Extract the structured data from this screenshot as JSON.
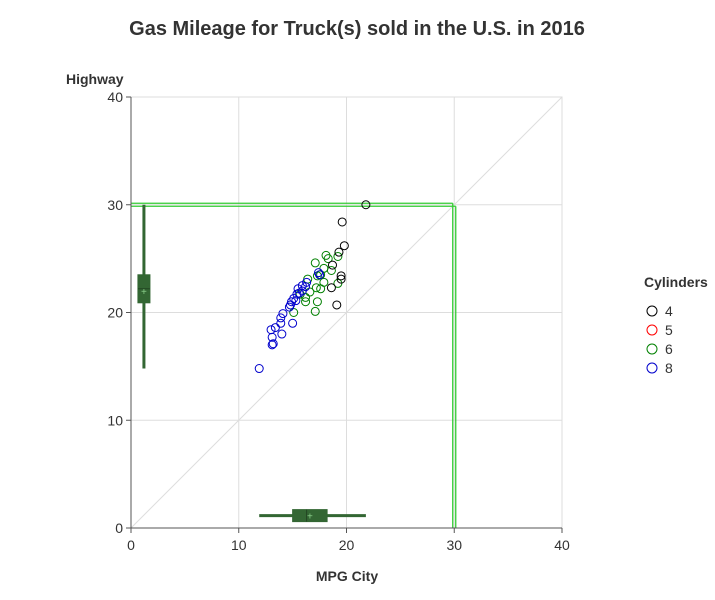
{
  "chart_data": {
    "type": "scatter",
    "title": "Gas Mileage for Truck(s) sold in the U.S. in 2016",
    "xlabel": "MPG City",
    "ylabel": "Highway",
    "xlim": [
      0,
      40
    ],
    "ylim": [
      0,
      40
    ],
    "x_ticks": [
      0,
      10,
      20,
      30,
      40
    ],
    "y_ticks": [
      0,
      10,
      20,
      30,
      40
    ],
    "grid": true,
    "reference_line": {
      "type": "diagonal",
      "from": [
        0,
        0
      ],
      "to": [
        40,
        40
      ],
      "color": "#dddddd"
    },
    "target_lines": {
      "x": 30,
      "y": 30,
      "color": "#33cc33"
    },
    "legend": {
      "title": "Cylinders",
      "placement": "right",
      "entries": [
        {
          "label": "4",
          "color": "#000000"
        },
        {
          "label": "5",
          "color": "#ff0000"
        },
        {
          "label": "6",
          "color": "#008000"
        },
        {
          "label": "8",
          "color": "#0000cc"
        }
      ]
    },
    "series": [
      {
        "name": "4",
        "color": "#000000",
        "points": [
          [
            21.8,
            30.0
          ],
          [
            19.6,
            28.4
          ],
          [
            19.8,
            26.2
          ],
          [
            19.3,
            25.6
          ],
          [
            18.7,
            24.4
          ],
          [
            19.5,
            23.4
          ],
          [
            19.5,
            23.1
          ],
          [
            18.6,
            22.3
          ],
          [
            19.1,
            20.7
          ]
        ]
      },
      {
        "name": "5",
        "color": "#ff0000",
        "points": []
      },
      {
        "name": "6",
        "color": "#008000",
        "points": [
          [
            18.1,
            25.3
          ],
          [
            19.2,
            25.2
          ],
          [
            18.3,
            25.0
          ],
          [
            17.1,
            24.6
          ],
          [
            17.9,
            24.1
          ],
          [
            18.6,
            23.9
          ],
          [
            17.6,
            23.5
          ],
          [
            17.3,
            23.4
          ],
          [
            16.4,
            23.1
          ],
          [
            19.2,
            22.7
          ],
          [
            17.9,
            22.8
          ],
          [
            17.6,
            22.2
          ],
          [
            17.2,
            22.3
          ],
          [
            16.6,
            21.9
          ],
          [
            15.7,
            21.7
          ],
          [
            16.2,
            21.4
          ],
          [
            17.3,
            21.0
          ],
          [
            16.2,
            21.0
          ],
          [
            15.1,
            20.0
          ],
          [
            17.1,
            20.1
          ]
        ]
      },
      {
        "name": "8",
        "color": "#0000cc",
        "points": [
          [
            17.4,
            23.7
          ],
          [
            17.5,
            23.5
          ],
          [
            16.3,
            22.8
          ],
          [
            16.2,
            22.4
          ],
          [
            15.9,
            22.5
          ],
          [
            15.5,
            22.2
          ],
          [
            15.9,
            22.0
          ],
          [
            15.6,
            21.8
          ],
          [
            15.4,
            21.7
          ],
          [
            15.1,
            21.3
          ],
          [
            15.3,
            21.1
          ],
          [
            14.9,
            21.0
          ],
          [
            14.8,
            20.7
          ],
          [
            14.7,
            20.5
          ],
          [
            14.1,
            19.9
          ],
          [
            13.9,
            19.5
          ],
          [
            13.9,
            19.0
          ],
          [
            15.0,
            19.0
          ],
          [
            13.4,
            18.6
          ],
          [
            13.0,
            18.4
          ],
          [
            14.0,
            18.0
          ],
          [
            13.1,
            17.7
          ],
          [
            13.2,
            17.1
          ],
          [
            13.1,
            17.0
          ],
          [
            11.9,
            14.8
          ]
        ]
      }
    ],
    "boxplot_x": {
      "min": 11.9,
      "q1": 15.0,
      "median": 16.3,
      "q3": 18.2,
      "max": 21.8,
      "mean": 16.6
    },
    "boxplot_y": {
      "min": 14.8,
      "q1": 20.9,
      "median": 22.2,
      "q3": 23.5,
      "max": 30.0,
      "mean": 22.0
    },
    "boxplot_color": "#336633"
  }
}
